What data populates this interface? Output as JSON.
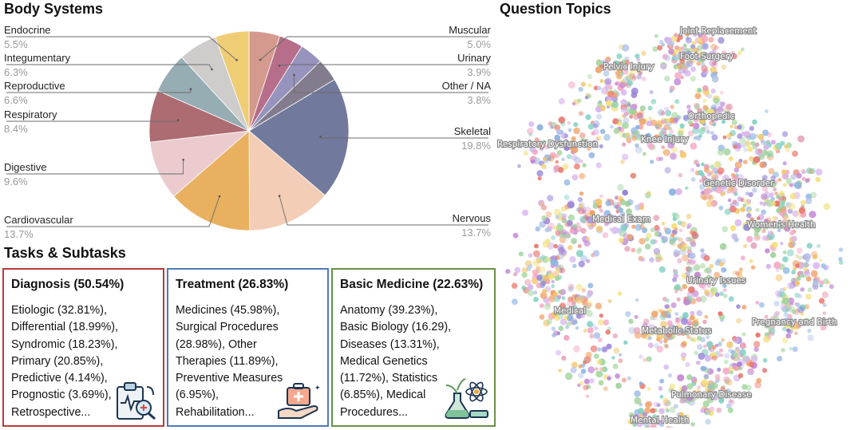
{
  "body_systems": {
    "title": "Body Systems"
  },
  "chart_data": {
    "type": "pie",
    "title": "Body Systems",
    "slices": [
      {
        "name": "Muscular",
        "pct_label": "5.0%",
        "value": 5.0,
        "color": "#d59a8e"
      },
      {
        "name": "Urinary",
        "pct_label": "3.9%",
        "value": 3.9,
        "color": "#b66e8a"
      },
      {
        "name": "Other / NA",
        "pct_label": "3.8%",
        "value": 3.8,
        "color": "#9693bd"
      },
      {
        "name": "Skeletal",
        "pct_label": "19.8%",
        "value": 19.8,
        "color": "#717a9c"
      },
      {
        "name": "Nervous",
        "pct_label": "13.7%",
        "value": 13.7,
        "color": "#f3cdb6"
      },
      {
        "name": "Cardiovascular",
        "pct_label": "13.7%",
        "value": 13.7,
        "color": "#e9b15f"
      },
      {
        "name": "Digestive",
        "pct_label": "9.6%",
        "value": 9.6,
        "color": "#ebcbcd"
      },
      {
        "name": "Respiratory",
        "pct_label": "8.4%",
        "value": 8.4,
        "color": "#ac6c72"
      },
      {
        "name": "Reproductive",
        "pct_label": "6.6%",
        "value": 6.6,
        "color": "#97adb4"
      },
      {
        "name": "Integumentary",
        "pct_label": "6.3%",
        "value": 6.3,
        "color": "#cfcccc"
      },
      {
        "name": "Endocrine",
        "pct_label": "5.5%",
        "value": 5.5,
        "color": "#efcd75"
      }
    ],
    "extra_unlabeled": {
      "value": 3.7,
      "color": "#837c8e"
    }
  },
  "tasks": {
    "title": "Tasks & Subtasks",
    "boxes": [
      {
        "title": "Diagnosis (50.54%)",
        "border_color": "#bb3a3a",
        "lines": [
          "Etiologic (32.81%),",
          "Differential (18.99%),",
          "Syndromic (18.23%),",
          "Primary (20.85%),",
          "Predictive (4.14%),",
          "Prognostic (3.69%),",
          "Retrospective..."
        ]
      },
      {
        "title": "Treatment (26.83%)",
        "border_color": "#5079b7",
        "lines": [
          "Medicines (45.98%),",
          "Surgical Procedures",
          "(28.98%), Other",
          "Therapies (11.89%),",
          "Preventive Measures",
          "(6.95%),",
          "Rehabilitation..."
        ]
      },
      {
        "title": "Basic Medicine (22.63%)",
        "border_color": "#6c8f4a",
        "lines": [
          "Anatomy (39.23%),",
          "Basic Biology (16.29),",
          "Diseases (13.31%),",
          "Medical Genetics",
          "(11.72%), Statistics",
          "(6.85%), Medical",
          "Procedures..."
        ]
      }
    ]
  },
  "topics": {
    "title": "Question Topics",
    "labels": [
      "Joint Replacement",
      "Foot Surgery",
      "Pelvic Injury",
      "Orthopedic",
      "Knee Injury",
      "Respiratory Dysfunction",
      "Genetic Disorder",
      "Medical Exam",
      "Women's Health",
      "Urinary Issues",
      "Medical",
      "Metabolic Status",
      "Pregnancy and Birth",
      "Pulmonary Disease",
      "Mental Health"
    ],
    "palette": [
      "#e8766b",
      "#f2c66b",
      "#9fd09a",
      "#8fb4e3",
      "#c48ad6",
      "#f5a8c8",
      "#7fd0c0",
      "#f4e07a",
      "#b5c4e8",
      "#f0a36a",
      "#a5d8a0",
      "#d9b8f0",
      "#9a86d8",
      "#e4a0b8"
    ]
  }
}
